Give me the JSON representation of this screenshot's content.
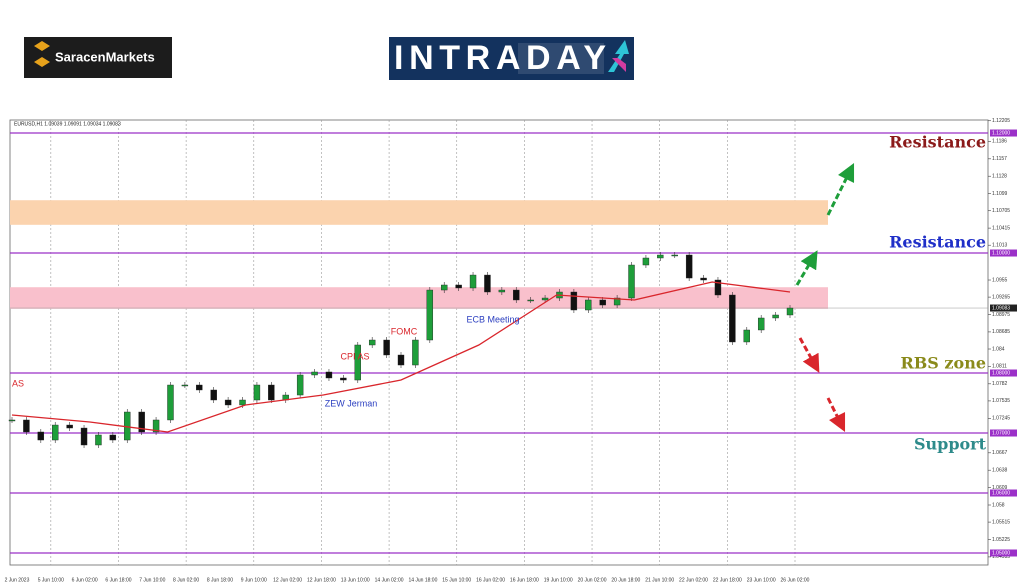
{
  "header": {
    "brand": "SaracenMarkets",
    "banner": "INTRADAY"
  },
  "chart_data": {
    "type": "candlestick",
    "title": "EURUSD,H1 1.09039 1.09091 1.09034 1.09083",
    "close": [
      1.07217,
      1.07017,
      1.06883,
      1.07133,
      1.07083,
      1.068,
      1.06967,
      1.06883,
      1.0735,
      1.07017,
      1.07217,
      1.078,
      1.078,
      1.07717,
      1.0755,
      1.07467,
      1.0755,
      1.078,
      1.0755,
      1.07633,
      1.07967,
      1.08017,
      1.07917,
      1.07883,
      1.08467,
      1.0855,
      1.083,
      1.08133,
      1.0855,
      1.09383,
      1.09467,
      1.09417,
      1.09633,
      1.0935,
      1.09383,
      1.09217,
      1.09217,
      1.0925,
      1.0935,
      1.0905,
      1.09217,
      1.09133,
      1.0925,
      1.098,
      1.09917,
      1.09967,
      1.09967,
      1.09583,
      1.0955,
      1.093,
      1.08517,
      1.08717,
      1.08917,
      1.08967,
      1.09083
    ],
    "up_color": "#1e9e3a",
    "down_color": "#111111",
    "ma": [
      1.073,
      1.07183,
      1.07017,
      1.07467,
      1.07633,
      1.07883,
      1.08467,
      1.093,
      1.09217,
      1.09517,
      1.0935
    ],
    "ma_color": "#d9262c",
    "last_price": 1.09083,
    "ylim": [
      1.048,
      1.12217
    ],
    "yticks": [
      {
        "value": 1.12205,
        "label": "1.12205"
      },
      1.1186,
      1.1157,
      1.1128,
      1.1099,
      {
        "value": 1.10705,
        "label": "1.10705"
      },
      {
        "value": 1.10415,
        "label": "1.10415"
      },
      1.1013,
      1.0955,
      {
        "value": 1.09265,
        "label": "1.09265"
      },
      {
        "value": 1.08975,
        "label": "1.08975"
      },
      {
        "value": 1.08685,
        "label": "1.08685"
      },
      1.084,
      1.0811,
      1.0782,
      {
        "value": 1.07535,
        "label": "1.07535"
      },
      {
        "value": 1.07245,
        "label": "1.07245"
      },
      1.0667,
      1.0638,
      1.0609,
      1.058,
      {
        "value": 1.05515,
        "label": "1.05515"
      },
      {
        "value": 1.05225,
        "label": "1.05225"
      },
      {
        "value": 1.04935,
        "label": "1.04935"
      }
    ],
    "levels": [
      {
        "value": 1.12,
        "label": "1.12000"
      },
      {
        "value": 1.1,
        "label": "1.10000"
      },
      {
        "value": 1.08,
        "label": "1.08000"
      },
      {
        "value": 1.07,
        "label": "1.07000"
      },
      {
        "value": 1.06,
        "label": "1.06000"
      },
      {
        "value": 1.05,
        "label": "1.05000"
      }
    ],
    "level_color": "#9b30c8",
    "zones": [
      {
        "range": [
          1.1047,
          1.1088
        ],
        "color": "#fbd3ae"
      },
      {
        "range": [
          1.0907,
          1.0943
        ],
        "color": "#f9c0cc"
      }
    ],
    "x_labels": [
      "2 Jun 2023",
      "5 Jun 10:00",
      "6 Jun 02:00",
      "6 Jun 18:00",
      "7 Jun 10:00",
      "8 Jun 02:00",
      "8 Jun 18:00",
      "9 Jun 10:00",
      "12 Jun 02:00",
      "12 Jun 18:00",
      "13 Jun 10:00",
      "14 Jun 02:00",
      "14 Jun 18:00",
      "15 Jun 10:00",
      "16 Jun 02:00",
      "16 Jun 18:00",
      "19 Jun 10:00",
      "20 Jun 02:00",
      "20 Jun 18:00",
      "21 Jun 10:00",
      "22 Jun 02:00",
      "22 Jun 18:00",
      "23 Jun 10:00",
      "26 Jun 02:00"
    ],
    "events": [
      {
        "text": "AS",
        "color": "#d9262c"
      },
      {
        "text": "CPI AS",
        "color": "#d9262c"
      },
      {
        "text": "FOMC",
        "color": "#d9262c"
      },
      {
        "text": "ECB Meeting",
        "color": "#2b3fc0"
      },
      {
        "text": "ZEW Jerman",
        "color": "#2b3fc0"
      }
    ],
    "side_labels": [
      {
        "text": "Resistance",
        "color": "#8b1a1a"
      },
      {
        "text": "Resistance",
        "color": "#1f2fc8"
      },
      {
        "text": "RBS zone",
        "color": "#8a8a1a"
      },
      {
        "text": "Support",
        "color": "#2e8b8b"
      }
    ]
  }
}
